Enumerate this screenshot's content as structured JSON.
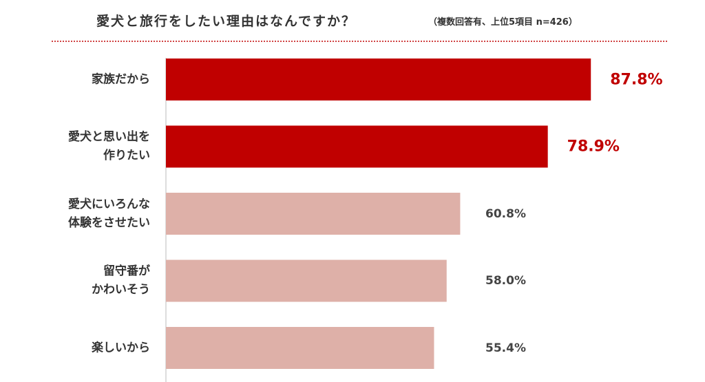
{
  "chart_data": {
    "type": "bar",
    "orientation": "horizontal",
    "title": "愛犬と旅行をしたい理由はなんですか？",
    "subtitle": "（複数回答有、上位5項目 n=426）",
    "categories": [
      "家族だから",
      "愛犬と思い出を\n作りたい",
      "愛犬にいろんな\n体験をさせたい",
      "留守番が\nかわいそう",
      "楽しいから"
    ],
    "values": [
      87.8,
      78.9,
      60.8,
      58.0,
      55.4
    ],
    "value_labels": [
      "87.8%",
      "78.9%",
      "60.8%",
      "58.0%",
      "55.4%"
    ],
    "colors": [
      "#c00000",
      "#c00000",
      "#deb0a8",
      "#deb0a8",
      "#deb0a8"
    ]
  }
}
